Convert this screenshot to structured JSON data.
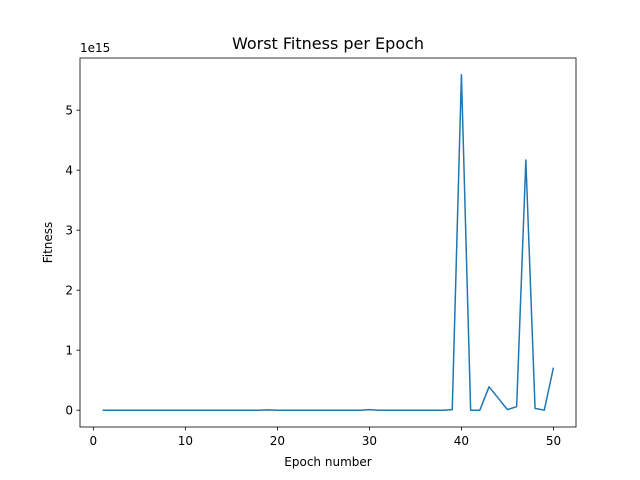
{
  "chart_data": {
    "type": "line",
    "title": "Worst Fitness per Epoch",
    "xlabel": "Epoch number",
    "ylabel": "Fitness",
    "offset_text": "1e15",
    "xlim": [
      -1.45,
      52.45
    ],
    "ylim": [
      -0.28,
      5.87
    ],
    "x_ticks": [
      0,
      10,
      20,
      30,
      40,
      50
    ],
    "y_ticks": [
      0,
      1,
      2,
      3,
      4,
      5
    ],
    "grid": false,
    "series_color": "#1f77b4",
    "series": [
      {
        "x": [
          1,
          2,
          3,
          4,
          5,
          6,
          7,
          8,
          9,
          10,
          11,
          12,
          13,
          14,
          15,
          16,
          17,
          18,
          19,
          20,
          21,
          22,
          23,
          24,
          25,
          26,
          27,
          28,
          29,
          30,
          31,
          32,
          33,
          34,
          35,
          36,
          37,
          38,
          39,
          40,
          41,
          42,
          43,
          44,
          45,
          46,
          47,
          48,
          49,
          50
        ],
        "values": [
          0.0,
          0.0,
          0.0,
          0.0,
          0.0,
          0.0,
          0.0,
          0.0,
          0.0,
          0.0,
          0.0,
          0.0,
          0.0,
          0.0,
          0.0,
          0.0,
          0.0,
          0.0,
          0.005,
          0.0,
          0.0,
          0.0,
          0.0,
          0.0,
          0.0,
          0.0,
          0.0,
          0.0,
          0.0,
          0.01,
          0.0,
          0.0,
          0.0,
          0.0,
          0.0,
          0.0,
          0.0,
          0.0,
          0.01,
          5.59,
          0.0,
          0.0,
          0.39,
          0.2,
          0.01,
          0.06,
          4.17,
          0.03,
          0.0,
          0.71
        ]
      }
    ]
  }
}
